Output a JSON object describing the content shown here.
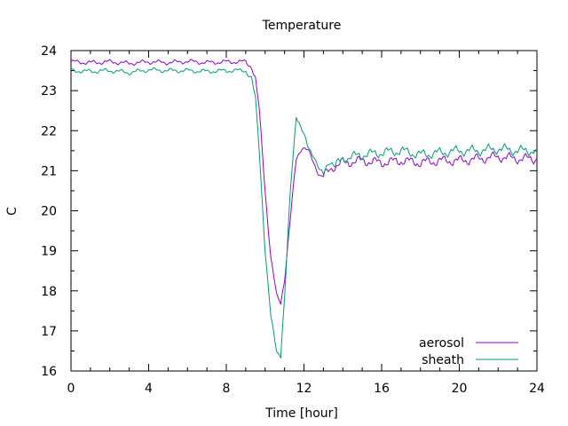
{
  "chart_data": {
    "type": "line",
    "title": "Temperature",
    "xlabel": "Time [hour]",
    "ylabel": "C",
    "xlim": [
      0,
      24
    ],
    "ylim": [
      16,
      24
    ],
    "xticks": [
      0,
      4,
      8,
      12,
      16,
      20,
      24
    ],
    "yticks": [
      16,
      17,
      18,
      19,
      20,
      21,
      22,
      23,
      24
    ],
    "grid": false,
    "legend_position": "bottom-right",
    "series": [
      {
        "name": "aerosol",
        "color": "#9400d3",
        "x": [
          0,
          1,
          2,
          3,
          4,
          5,
          6,
          7,
          8,
          9,
          9.3,
          9.5,
          9.7,
          10.0,
          10.3,
          10.6,
          10.8,
          11.0,
          11.3,
          11.6,
          11.9,
          12.2,
          12.5,
          12.8,
          13.0,
          13.5,
          14,
          15,
          16,
          17,
          18,
          19,
          20,
          21,
          22,
          23,
          24
        ],
        "y": [
          23.72,
          23.7,
          23.72,
          23.68,
          23.72,
          23.7,
          23.73,
          23.7,
          23.72,
          23.72,
          23.6,
          23.3,
          22.5,
          20.5,
          18.8,
          17.85,
          17.7,
          18.3,
          19.8,
          21.3,
          21.6,
          21.5,
          21.2,
          20.9,
          20.85,
          21.1,
          21.2,
          21.25,
          21.2,
          21.25,
          21.2,
          21.25,
          21.25,
          21.3,
          21.35,
          21.3,
          21.3
        ]
      },
      {
        "name": "sheath",
        "color": "#009e73",
        "x": [
          0,
          1,
          2,
          3,
          4,
          5,
          6,
          7,
          8,
          9,
          9.3,
          9.5,
          9.7,
          10.0,
          10.3,
          10.6,
          10.8,
          11.0,
          11.3,
          11.6,
          11.9,
          12.2,
          12.5,
          12.8,
          13.0,
          13.3,
          13.6,
          14,
          15,
          16,
          17,
          18,
          19,
          20,
          21,
          22,
          23,
          24
        ],
        "y": [
          23.5,
          23.48,
          23.5,
          23.45,
          23.52,
          23.5,
          23.5,
          23.48,
          23.5,
          23.5,
          23.3,
          22.8,
          21.5,
          19.0,
          17.3,
          16.5,
          16.4,
          17.8,
          20.5,
          22.4,
          22.0,
          21.6,
          21.4,
          21.0,
          20.9,
          21.3,
          21.1,
          21.3,
          21.4,
          21.45,
          21.5,
          21.4,
          21.45,
          21.5,
          21.5,
          21.55,
          21.5,
          21.5
        ]
      }
    ]
  }
}
